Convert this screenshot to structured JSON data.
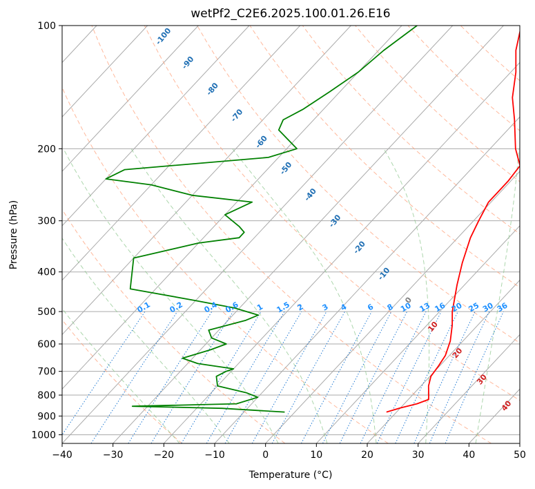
{
  "chart_data": {
    "type": "skew-t",
    "title": "wetPf2_C2E6.2025.100.01.26.E16",
    "xlabel": "Temperature (°C)",
    "ylabel": "Pressure (hPa)",
    "xlim": [
      -40,
      50
    ],
    "ylim": [
      1050,
      100
    ],
    "x_ticks": [
      "−40",
      "−30",
      "−20",
      "−10",
      "0",
      "10",
      "20",
      "30",
      "40",
      "50"
    ],
    "y_ticks": [
      "100",
      "200",
      "300",
      "400",
      "500",
      "600",
      "700",
      "800",
      "900",
      "1000"
    ],
    "y_scale": "log",
    "grid": true,
    "series": [
      {
        "color": "#ff0000",
        "points": [
          [
            18,
            880
          ],
          [
            20,
            860
          ],
          [
            22.5,
            840
          ],
          [
            24,
            820
          ],
          [
            23.2,
            800
          ],
          [
            21.5,
            760
          ],
          [
            20.2,
            720
          ],
          [
            19.8,
            680
          ],
          [
            19.2,
            640
          ],
          [
            17.5,
            590
          ],
          [
            15,
            540
          ],
          [
            12.5,
            500
          ],
          [
            8.5,
            430
          ],
          [
            5.5,
            380
          ],
          [
            2.5,
            330
          ],
          [
            1,
            300
          ],
          [
            -0.5,
            270
          ],
          [
            -0.5,
            255
          ],
          [
            -0.5,
            240
          ],
          [
            -1,
            220
          ],
          [
            -5,
            200
          ],
          [
            -10.5,
            170
          ],
          [
            -15,
            150
          ],
          [
            -19,
            130
          ],
          [
            -23,
            115
          ],
          [
            -26.5,
            100
          ]
        ]
      },
      {
        "color": "#008000",
        "points": [
          [
            -2,
            880
          ],
          [
            -15,
            862
          ],
          [
            -33,
            852
          ],
          [
            -13,
            840
          ],
          [
            -10,
            810
          ],
          [
            -13,
            790
          ],
          [
            -20,
            760
          ],
          [
            -22,
            720
          ],
          [
            -21,
            700
          ],
          [
            -20,
            690
          ],
          [
            -28,
            670
          ],
          [
            -32,
            650
          ],
          [
            -28,
            620
          ],
          [
            -26,
            600
          ],
          [
            -30,
            580
          ],
          [
            -32,
            555
          ],
          [
            -26.5,
            525
          ],
          [
            -25,
            510
          ],
          [
            -31,
            490
          ],
          [
            -40,
            470
          ],
          [
            -55,
            440
          ],
          [
            -60,
            370
          ],
          [
            -50,
            340
          ],
          [
            -43,
            330
          ],
          [
            -43,
            320
          ],
          [
            -45,
            310
          ],
          [
            -50,
            290
          ],
          [
            -47,
            270
          ],
          [
            -60,
            260
          ],
          [
            -70,
            245
          ],
          [
            -80,
            237
          ],
          [
            -78,
            225
          ],
          [
            -52,
            210
          ],
          [
            -48,
            200
          ],
          [
            -55,
            180
          ],
          [
            -56,
            170
          ],
          [
            -54,
            160
          ],
          [
            -52,
            145
          ],
          [
            -50,
            130
          ],
          [
            -49,
            115
          ],
          [
            -47,
            100
          ]
        ]
      }
    ],
    "dry_adiabats": [
      -20,
      0,
      20,
      40,
      60,
      80,
      100,
      120,
      140,
      160,
      180
    ],
    "dry_adiabat_labels": [
      "-100",
      "-90",
      "-80",
      "-70",
      "-60",
      "-50",
      "-40",
      "-30",
      "-20",
      "-10",
      "0",
      "10",
      "20",
      "30",
      "40"
    ],
    "moist_adiabats": [
      -20,
      -10,
      0,
      10,
      20,
      30,
      40
    ],
    "mixing_ratios": [
      "0.1",
      "0.2",
      "0.4",
      "0.6",
      "1",
      "1.5",
      "2",
      "3",
      "4",
      "6",
      "8",
      "10",
      "13",
      "16",
      "20",
      "25",
      "30",
      "36"
    ],
    "colors": {
      "temperature": "#ff0000",
      "dewpoint": "#008000",
      "isotherm": "#aaaaaa",
      "isobar": "#aaaaaa",
      "dry_adiabat": "#ffa07a",
      "moist_adiabat": "#90c890",
      "mixing_ratio": "#1e78d2",
      "mixing_ratio_label": "#1e90ff",
      "dry_label_cold": "#1f6fb4",
      "dry_label_warm": "#d02020",
      "dry_label_zero": "#808080"
    }
  }
}
